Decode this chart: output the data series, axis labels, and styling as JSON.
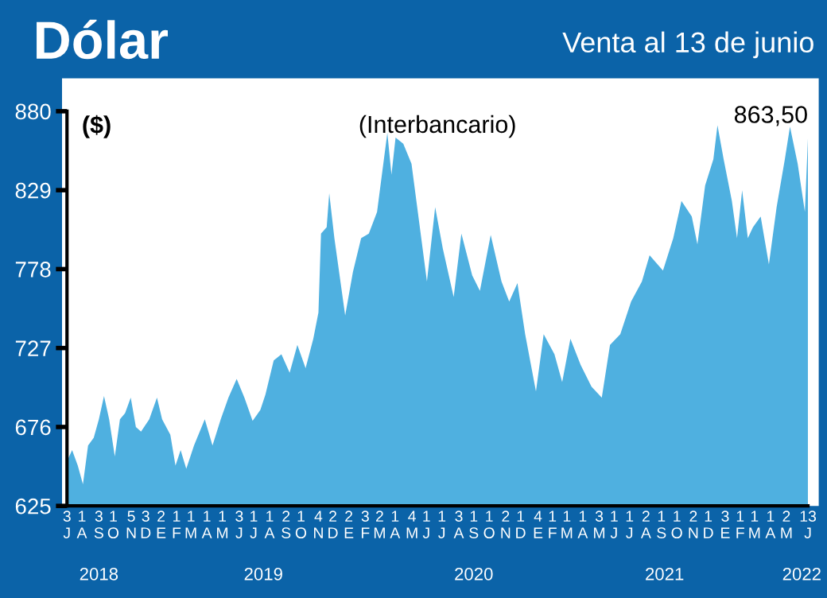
{
  "chart_data": {
    "type": "area",
    "title": "Dólar",
    "subtitle": "Venta al 13 de junio",
    "ylabel": "($)",
    "annotations": [
      "(Interbancario)",
      {
        "text": "863,50",
        "x": "2022-06-13",
        "y": 863.5
      }
    ],
    "series": [
      {
        "color": "#4fb0e0",
        "x": [
          "2018-07-03",
          "2018-07-13",
          "2018-07-24",
          "2018-08-03",
          "2018-08-13",
          "2018-08-24",
          "2018-09-03",
          "2018-09-13",
          "2018-09-23",
          "2018-10-04",
          "2018-10-14",
          "2018-10-24",
          "2018-11-04",
          "2018-11-14",
          "2018-11-24",
          "2018-12-10",
          "2018-12-25",
          "2019-01-04",
          "2019-01-20",
          "2019-01-30",
          "2019-02-09",
          "2019-02-20",
          "2019-03-07",
          "2019-03-28",
          "2019-04-12",
          "2019-04-28",
          "2019-05-13",
          "2019-05-29",
          "2019-06-13",
          "2019-06-29",
          "2019-07-14",
          "2019-07-24",
          "2019-08-09",
          "2019-08-24",
          "2019-09-09",
          "2019-09-24",
          "2019-10-10",
          "2019-10-25",
          "2019-11-04",
          "2019-11-09",
          "2019-11-20",
          "2019-11-25",
          "2019-12-05",
          "2019-12-26",
          "2020-01-10",
          "2020-01-26",
          "2020-02-10",
          "2020-02-26",
          "2020-03-17",
          "2020-03-25",
          "2020-04-02",
          "2020-04-17",
          "2020-05-03",
          "2020-05-18",
          "2020-06-02",
          "2020-06-18",
          "2020-07-03",
          "2020-07-24",
          "2020-08-08",
          "2020-08-29",
          "2020-09-13",
          "2020-10-04",
          "2020-10-25",
          "2020-11-09",
          "2020-11-25",
          "2020-12-10",
          "2020-12-31",
          "2021-01-15",
          "2021-02-05",
          "2021-02-20",
          "2021-03-08",
          "2021-03-28",
          "2021-04-18",
          "2021-05-08",
          "2021-05-24",
          "2021-06-13",
          "2021-07-04",
          "2021-07-25",
          "2021-08-09",
          "2021-09-04",
          "2021-09-24",
          "2021-10-10",
          "2021-10-30",
          "2021-11-10",
          "2021-11-25",
          "2021-12-11",
          "2021-12-19",
          "2021-12-31",
          "2022-01-16",
          "2022-01-26",
          "2022-02-05",
          "2022-02-16",
          "2022-02-26",
          "2022-03-13",
          "2022-03-29",
          "2022-04-13",
          "2022-04-29",
          "2022-05-09",
          "2022-05-24",
          "2022-06-07",
          "2022-06-13"
        ],
        "values": [
          654,
          661,
          651,
          639,
          664,
          669,
          681,
          696,
          681,
          657,
          681,
          685,
          695,
          676,
          673,
          681,
          695,
          681,
          671,
          651,
          661,
          649,
          664,
          681,
          664,
          681,
          695,
          707,
          695,
          680,
          687,
          697,
          719,
          723,
          711,
          729,
          714,
          733,
          750,
          801,
          805,
          827,
          798,
          748,
          776,
          798,
          801,
          815,
          866,
          839,
          863,
          859,
          846,
          808,
          770,
          818,
          791,
          760,
          801,
          774,
          764,
          800,
          770,
          757,
          769,
          736,
          699,
          736,
          723,
          705,
          733,
          716,
          702,
          695,
          729,
          736,
          757,
          770,
          787,
          777,
          798,
          822,
          812,
          794,
          832,
          849,
          871,
          849,
          822,
          798,
          829,
          798,
          805,
          812,
          781,
          818,
          849,
          870,
          846,
          815,
          863.5
        ]
      }
    ],
    "xlim": [
      "2018-07-03",
      "2022-06-13"
    ],
    "xticks": [
      {
        "value": "2018-07-03",
        "label": "3\nJ"
      },
      {
        "value": "2018-08-01",
        "label": "1\nA"
      },
      {
        "value": "2018-09-03",
        "label": "3\nS"
      },
      {
        "value": "2018-10-01",
        "label": "1\nO"
      },
      {
        "value": "2018-11-05",
        "label": "5\nN"
      },
      {
        "value": "2018-12-03",
        "label": "3\nD"
      },
      {
        "value": "2019-01-02",
        "label": "2\nE"
      },
      {
        "value": "2019-02-01",
        "label": "1\nF"
      },
      {
        "value": "2019-03-01",
        "label": "1\nM"
      },
      {
        "value": "2019-04-01",
        "label": "1\nA"
      },
      {
        "value": "2019-05-01",
        "label": "1\nM"
      },
      {
        "value": "2019-06-03",
        "label": "3\nJ"
      },
      {
        "value": "2019-07-01",
        "label": "1\nJ"
      },
      {
        "value": "2019-08-01",
        "label": "1\nA"
      },
      {
        "value": "2019-09-02",
        "label": "2\nS"
      },
      {
        "value": "2019-10-01",
        "label": "1\nO"
      },
      {
        "value": "2019-11-04",
        "label": "4\nN"
      },
      {
        "value": "2019-12-02",
        "label": "2\nD"
      },
      {
        "value": "2020-01-02",
        "label": "2\nE"
      },
      {
        "value": "2020-02-03",
        "label": "3\nF"
      },
      {
        "value": "2020-03-02",
        "label": "2\nM"
      },
      {
        "value": "2020-04-01",
        "label": "1\nA"
      },
      {
        "value": "2020-05-04",
        "label": "4\nM"
      },
      {
        "value": "2020-06-01",
        "label": "1\nJ"
      },
      {
        "value": "2020-07-01",
        "label": "1\nJ"
      },
      {
        "value": "2020-08-03",
        "label": "3\nA"
      },
      {
        "value": "2020-09-01",
        "label": "1\nS"
      },
      {
        "value": "2020-10-01",
        "label": "1\nO"
      },
      {
        "value": "2020-11-02",
        "label": "2\nN"
      },
      {
        "value": "2020-12-01",
        "label": "1\nD"
      },
      {
        "value": "2021-01-04",
        "label": "4\nE"
      },
      {
        "value": "2021-02-01",
        "label": "1\nF"
      },
      {
        "value": "2021-03-01",
        "label": "1\nM"
      },
      {
        "value": "2021-04-01",
        "label": "1\nA"
      },
      {
        "value": "2021-05-03",
        "label": "3\nM"
      },
      {
        "value": "2021-06-01",
        "label": "1\nJ"
      },
      {
        "value": "2021-07-01",
        "label": "1\nJ"
      },
      {
        "value": "2021-08-02",
        "label": "2\nA"
      },
      {
        "value": "2021-09-01",
        "label": "1\nS"
      },
      {
        "value": "2021-10-01",
        "label": "1\nO"
      },
      {
        "value": "2021-11-02",
        "label": "2\nN"
      },
      {
        "value": "2021-12-01",
        "label": "1\nD"
      },
      {
        "value": "2022-01-03",
        "label": "3\nE"
      },
      {
        "value": "2022-02-01",
        "label": "1\nF"
      },
      {
        "value": "2022-03-01",
        "label": "1\nM"
      },
      {
        "value": "2022-04-01",
        "label": "1\nA"
      },
      {
        "value": "2022-05-02",
        "label": "2\nM"
      },
      {
        "value": "2022-06-13",
        "label": "13\nJ"
      }
    ],
    "x2lim": [
      "2018-07-03",
      "2022-06-13"
    ],
    "x2ticks": [
      {
        "value": "2018-09-03",
        "label": "2018"
      },
      {
        "value": "2019-07-20",
        "label": "2019"
      },
      {
        "value": "2020-09-01",
        "label": "2020"
      },
      {
        "value": "2021-09-07",
        "label": "2021"
      },
      {
        "value": "2022-06-01",
        "label": "2022"
      }
    ],
    "ylim": [
      625,
      880
    ],
    "yticks": [
      625,
      676,
      727,
      778,
      829,
      880
    ]
  }
}
